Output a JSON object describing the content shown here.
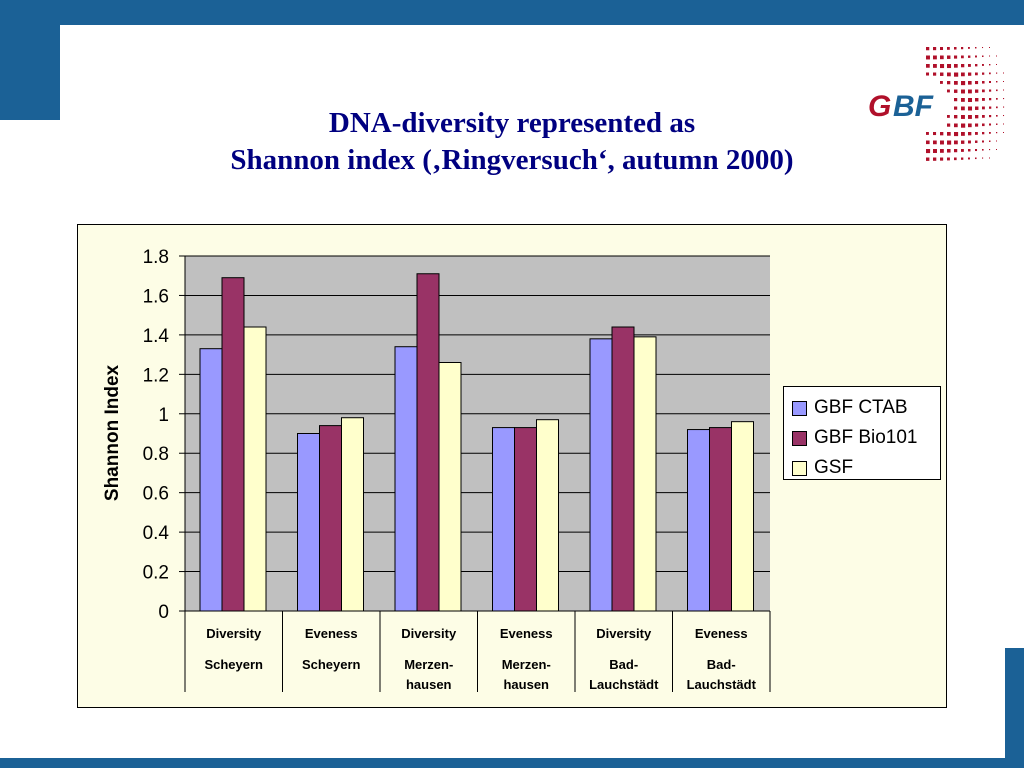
{
  "title": {
    "line1": "DNA-diversity represented as",
    "line2": "Shannon index (‚Ringversuch‘, autumn 2000)"
  },
  "logo": {
    "text": "GBF"
  },
  "colors": {
    "frame": "#1b6196",
    "ctab": "#9999ff",
    "bio101": "#993366",
    "gsf": "#ffffcc",
    "plot_bg": "#c0c0c0"
  },
  "chart_data": {
    "type": "bar",
    "ylabel": "Shannon Index",
    "ylim": [
      0,
      1.8
    ],
    "yticks": [
      "0",
      "0.2",
      "0.4",
      "0.6",
      "0.8",
      "1",
      "1.2",
      "1.4",
      "1.6",
      "1.8"
    ],
    "categories": [
      [
        "Diversity",
        "Scheyern"
      ],
      [
        "Eveness",
        "Scheyern"
      ],
      [
        "Diversity",
        "Merzen-",
        "hausen"
      ],
      [
        "Eveness",
        "Merzen-",
        "hausen"
      ],
      [
        "Diversity",
        "Bad-",
        "Lauchstädt"
      ],
      [
        "Eveness",
        "Bad-",
        "Lauchstädt"
      ]
    ],
    "series": [
      {
        "name": "GBF CTAB",
        "values": [
          1.33,
          0.9,
          1.34,
          0.93,
          1.38,
          0.92
        ]
      },
      {
        "name": "GBF Bio101",
        "values": [
          1.69,
          0.94,
          1.71,
          0.93,
          1.44,
          0.93
        ]
      },
      {
        "name": "GSF",
        "values": [
          1.44,
          0.98,
          1.26,
          0.97,
          1.39,
          0.96
        ]
      }
    ],
    "legend": "right",
    "grid": true
  }
}
